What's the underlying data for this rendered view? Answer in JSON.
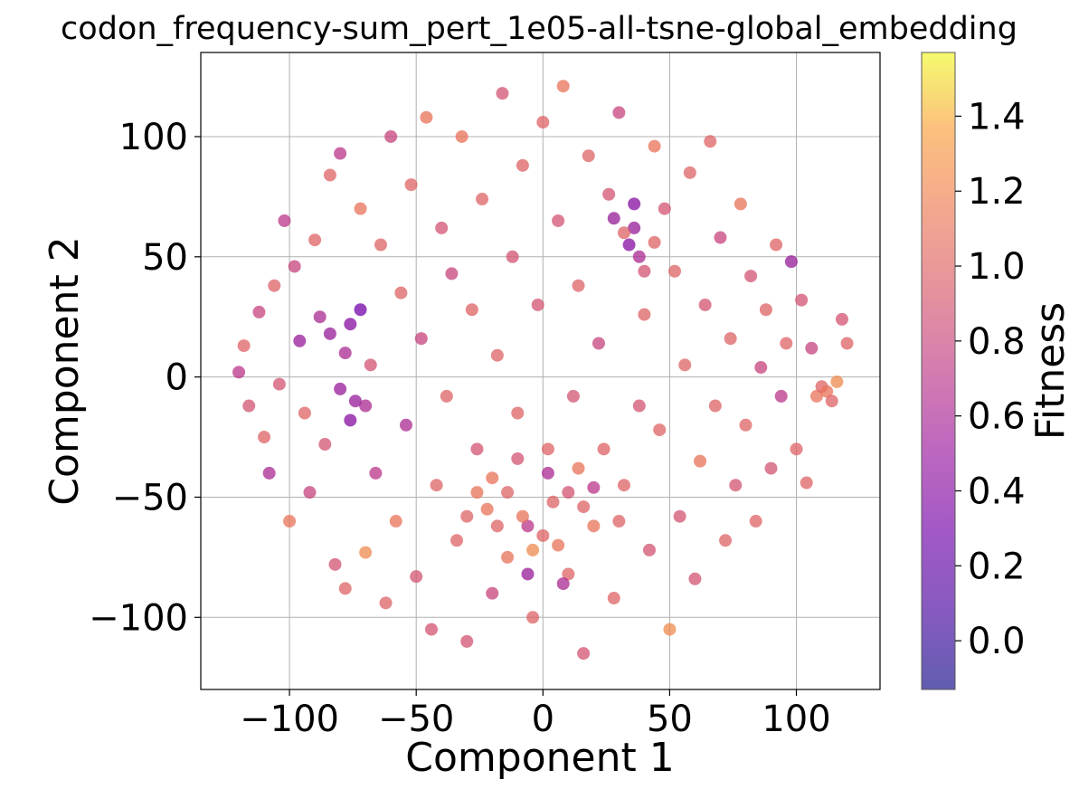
{
  "chart_data": {
    "type": "scatter",
    "title": "codon_frequency-sum_pert_1e05-all-tsne-global_embedding",
    "xlabel": "Component 1",
    "ylabel": "Component 2",
    "xlim": [
      -135,
      133
    ],
    "ylim": [
      -130,
      135
    ],
    "xticks": [
      {
        "value": -100,
        "label": "−100"
      },
      {
        "value": -50,
        "label": "−50"
      },
      {
        "value": 0,
        "label": "0"
      },
      {
        "value": 50,
        "label": "50"
      },
      {
        "value": 100,
        "label": "100"
      }
    ],
    "yticks": [
      {
        "value": -100,
        "label": "−100"
      },
      {
        "value": -50,
        "label": "−50"
      },
      {
        "value": 0,
        "label": "0"
      },
      {
        "value": 50,
        "label": "50"
      },
      {
        "value": 100,
        "label": "100"
      }
    ],
    "grid": true,
    "colorbar": {
      "label": "Fitness",
      "colormap": "plasma",
      "range": [
        -0.13,
        1.57
      ],
      "ticks": [
        {
          "value": 0.0,
          "label": "0.0"
        },
        {
          "value": 0.2,
          "label": "0.2"
        },
        {
          "value": 0.4,
          "label": "0.4"
        },
        {
          "value": 0.6,
          "label": "0.6"
        },
        {
          "value": 0.8,
          "label": "0.8"
        },
        {
          "value": 1.0,
          "label": "1.0"
        },
        {
          "value": 1.2,
          "label": "1.2"
        },
        {
          "value": 1.4,
          "label": "1.4"
        }
      ]
    },
    "points": [
      [
        -120,
        2,
        0.7
      ],
      [
        -118,
        13,
        1.0
      ],
      [
        -116,
        -12,
        0.9
      ],
      [
        -112,
        27,
        0.8
      ],
      [
        -110,
        -25,
        1.0
      ],
      [
        -108,
        -40,
        0.6
      ],
      [
        -106,
        38,
        1.0
      ],
      [
        -104,
        -3,
        0.9
      ],
      [
        -102,
        65,
        0.7
      ],
      [
        -100,
        -60,
        1.1
      ],
      [
        -98,
        46,
        0.8
      ],
      [
        -96,
        15,
        0.5
      ],
      [
        -94,
        -15,
        1.0
      ],
      [
        -92,
        -48,
        0.8
      ],
      [
        -90,
        57,
        1.0
      ],
      [
        -88,
        25,
        0.6
      ],
      [
        -86,
        -28,
        0.9
      ],
      [
        -84,
        84,
        1.0
      ],
      [
        -82,
        -78,
        0.9
      ],
      [
        -80,
        93,
        0.7
      ],
      [
        -78,
        -88,
        1.0
      ],
      [
        -76,
        22,
        0.4
      ],
      [
        -74,
        -10,
        0.5
      ],
      [
        -72,
        70,
        1.1
      ],
      [
        -70,
        -73,
        1.2
      ],
      [
        -68,
        5,
        0.9
      ],
      [
        -66,
        -40,
        0.7
      ],
      [
        -64,
        55,
        1.0
      ],
      [
        -62,
        -94,
        1.0
      ],
      [
        -60,
        100,
        0.8
      ],
      [
        -58,
        -60,
        1.1
      ],
      [
        -56,
        35,
        1.0
      ],
      [
        -54,
        -20,
        0.6
      ],
      [
        -52,
        80,
        1.0
      ],
      [
        -50,
        -83,
        0.9
      ],
      [
        -48,
        16,
        0.8
      ],
      [
        -46,
        108,
        1.1
      ],
      [
        -44,
        -105,
        0.9
      ],
      [
        -42,
        -45,
        1.0
      ],
      [
        -40,
        62,
        0.9
      ],
      [
        -38,
        -8,
        1.0
      ],
      [
        -36,
        43,
        0.8
      ],
      [
        -34,
        -68,
        1.0
      ],
      [
        -32,
        100,
        1.1
      ],
      [
        -30,
        -110,
        0.9
      ],
      [
        -28,
        28,
        1.0
      ],
      [
        -26,
        -30,
        0.9
      ],
      [
        -24,
        74,
        1.0
      ],
      [
        -22,
        -55,
        1.1
      ],
      [
        -20,
        -90,
        0.8
      ],
      [
        -18,
        9,
        1.0
      ],
      [
        -16,
        118,
        0.9
      ],
      [
        -14,
        -75,
        1.1
      ],
      [
        -12,
        50,
        0.9
      ],
      [
        -10,
        -15,
        1.0
      ],
      [
        -8,
        88,
        1.0
      ],
      [
        -6,
        -62,
        0.7
      ],
      [
        -4,
        -100,
        1.0
      ],
      [
        -2,
        30,
        0.9
      ],
      [
        0,
        106,
        1.0
      ],
      [
        2,
        -40,
        0.6
      ],
      [
        4,
        -52,
        1.0
      ],
      [
        6,
        65,
        0.9
      ],
      [
        8,
        121,
        1.1
      ],
      [
        10,
        -82,
        1.0
      ],
      [
        12,
        -8,
        0.9
      ],
      [
        14,
        38,
        1.0
      ],
      [
        16,
        -115,
        0.9
      ],
      [
        18,
        92,
        1.0
      ],
      [
        20,
        -62,
        1.1
      ],
      [
        22,
        14,
        0.8
      ],
      [
        24,
        -30,
        1.0
      ],
      [
        26,
        76,
        0.9
      ],
      [
        28,
        -92,
        1.0
      ],
      [
        30,
        110,
        0.8
      ],
      [
        32,
        -45,
        1.0
      ],
      [
        34,
        55,
        0.4
      ],
      [
        36,
        62,
        0.5
      ],
      [
        38,
        -12,
        0.9
      ],
      [
        40,
        26,
        1.0
      ],
      [
        42,
        -72,
        0.9
      ],
      [
        44,
        96,
        1.1
      ],
      [
        46,
        -22,
        1.0
      ],
      [
        48,
        70,
        0.9
      ],
      [
        50,
        -105,
        1.2
      ],
      [
        52,
        44,
        1.0
      ],
      [
        54,
        -58,
        0.9
      ],
      [
        56,
        5,
        1.0
      ],
      [
        58,
        85,
        1.0
      ],
      [
        60,
        -84,
        0.9
      ],
      [
        62,
        -35,
        1.1
      ],
      [
        64,
        30,
        0.9
      ],
      [
        66,
        98,
        1.0
      ],
      [
        68,
        -12,
        1.0
      ],
      [
        70,
        58,
        0.8
      ],
      [
        72,
        -68,
        1.0
      ],
      [
        74,
        16,
        1.0
      ],
      [
        76,
        -45,
        0.9
      ],
      [
        78,
        72,
        1.1
      ],
      [
        80,
        -20,
        1.0
      ],
      [
        82,
        42,
        0.9
      ],
      [
        84,
        -60,
        1.0
      ],
      [
        86,
        4,
        0.8
      ],
      [
        88,
        28,
        1.0
      ],
      [
        90,
        -38,
        0.9
      ],
      [
        92,
        55,
        1.0
      ],
      [
        94,
        -8,
        0.7
      ],
      [
        96,
        14,
        1.0
      ],
      [
        98,
        48,
        0.5
      ],
      [
        100,
        -30,
        1.0
      ],
      [
        102,
        32,
        0.9
      ],
      [
        104,
        -44,
        1.0
      ],
      [
        106,
        12,
        0.8
      ],
      [
        108,
        -8,
        1.1
      ],
      [
        110,
        -4,
        1.0
      ],
      [
        112,
        -6,
        1.1
      ],
      [
        114,
        -10,
        1.0
      ],
      [
        116,
        -2,
        1.2
      ],
      [
        118,
        24,
        0.9
      ],
      [
        120,
        14,
        1.0
      ],
      [
        -80,
        -5,
        0.5
      ],
      [
        -76,
        -18,
        0.4
      ],
      [
        -72,
        28,
        0.3
      ],
      [
        -78,
        10,
        0.6
      ],
      [
        -70,
        -12,
        0.6
      ],
      [
        -84,
        18,
        0.5
      ],
      [
        -14,
        -48,
        1.0
      ],
      [
        -20,
        -42,
        1.1
      ],
      [
        -8,
        -58,
        1.1
      ],
      [
        0,
        -66,
        1.0
      ],
      [
        10,
        -48,
        0.9
      ],
      [
        -4,
        -72,
        1.2
      ],
      [
        6,
        -70,
        1.1
      ],
      [
        16,
        -54,
        1.0
      ],
      [
        -18,
        -62,
        1.0
      ],
      [
        -26,
        -48,
        1.1
      ],
      [
        -10,
        -34,
        0.9
      ],
      [
        2,
        -30,
        1.0
      ],
      [
        14,
        -38,
        1.1
      ],
      [
        20,
        -46,
        0.7
      ],
      [
        -30,
        -58,
        1.0
      ],
      [
        8,
        -86,
        0.6
      ],
      [
        -6,
        -82,
        0.5
      ],
      [
        30,
        -60,
        1.0
      ],
      [
        38,
        50,
        0.6
      ],
      [
        32,
        60,
        1.0
      ],
      [
        40,
        44,
        0.9
      ],
      [
        28,
        66,
        0.5
      ],
      [
        44,
        56,
        1.0
      ],
      [
        36,
        72,
        0.4
      ]
    ]
  }
}
